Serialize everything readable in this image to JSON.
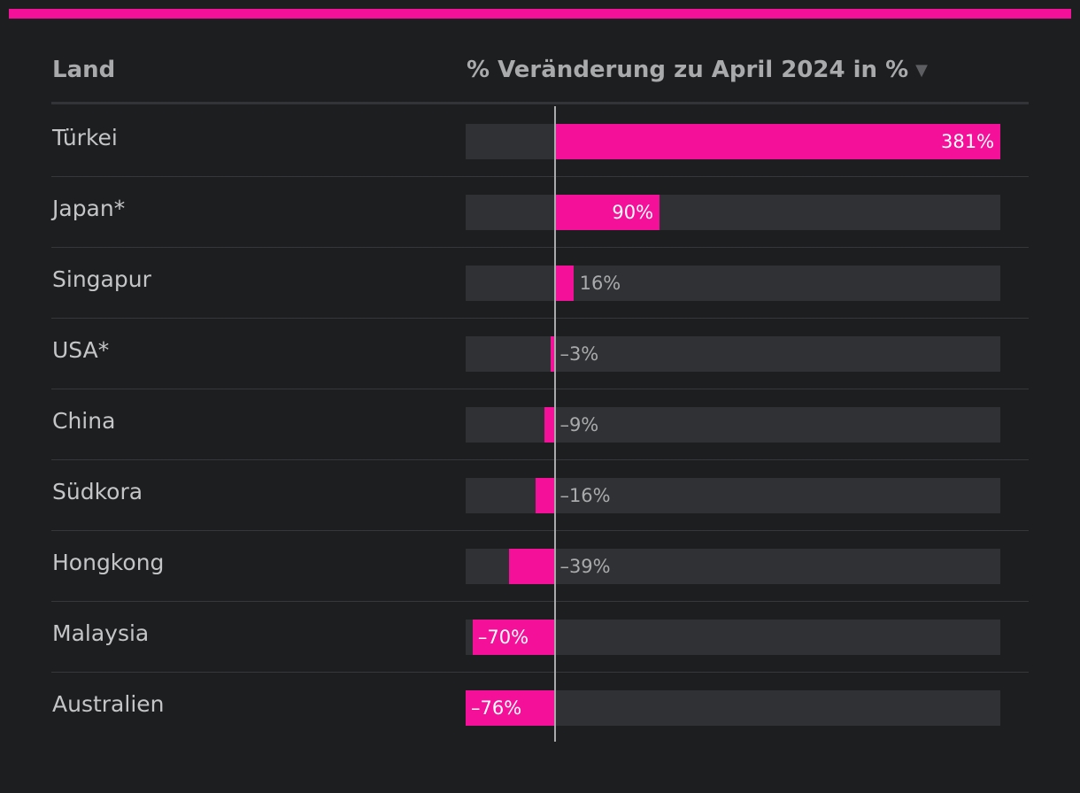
{
  "header": {
    "col_country": "Land",
    "col_value": "% Veränderung zu April 2024 in %",
    "sort_icon": "▼"
  },
  "colors": {
    "accent": "#f5109a",
    "track": "#303134",
    "background": "#1d1e20"
  },
  "chart_data": {
    "type": "bar",
    "orientation": "horizontal",
    "xlim": [
      -76,
      381
    ],
    "categories": [
      "Türkei",
      "Japan*",
      "Singapur",
      "USA*",
      "China",
      "Südkora",
      "Hongkong",
      "Malaysia",
      "Australien"
    ],
    "values": [
      381,
      90,
      16,
      -3,
      -9,
      -16,
      -39,
      -70,
      -76
    ],
    "value_labels": [
      "381%",
      "90%",
      "16%",
      "–3%",
      "–9%",
      "–16%",
      "–39%",
      "–70%",
      "–76%"
    ],
    "xlabel": "% Veränderung zu April 2024 in %",
    "ylabel": "Land"
  }
}
